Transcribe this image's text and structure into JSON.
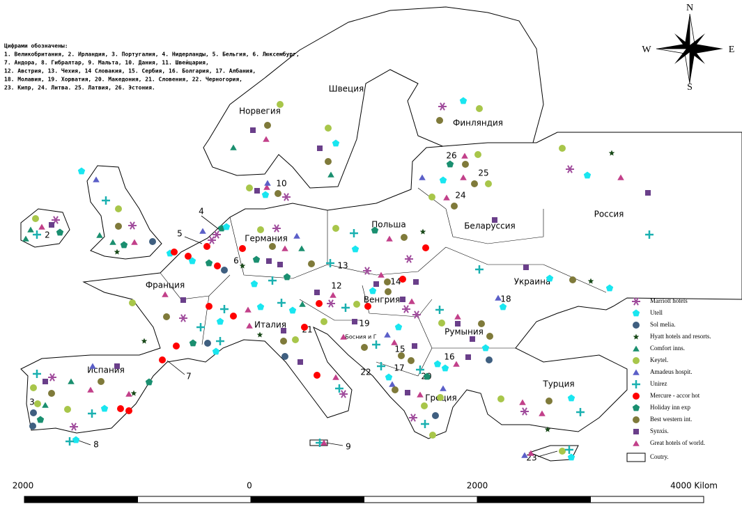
{
  "notes": {
    "title": "Цифрами обозначены:",
    "lines": [
      "1. Великобритания, 2. Ирландия, 3. Португалия, 4. Нидерланды, 5. Бельгия, 6. Люксембург,",
      "7. Андора, 8. Гибралтар, 9. Мальта, 10. Дания, 11. Швейцария,",
      "12. Австрия, 13. Чехия, 14 Словакия, 15. Сербия, 16. Болгария, 17. Албания,",
      "18. Молавия, 19. Хорватия, 20. Македония, 21. Словения, 22. Черногория,",
      "23. Кипр, 24. Литва. 25. Латвия, 26. Эстония."
    ]
  },
  "countries": [
    "Швеция",
    "Норвегия",
    "Финляндия",
    "Россия",
    "Беларуссия",
    "Польша",
    "Германия",
    "Украина",
    "Франция",
    "Венгрия",
    "Италия",
    "Румыния",
    "Босния и Г",
    "Испания",
    "Турция",
    "Греция"
  ],
  "numbers": [
    "2",
    "3",
    "4",
    "5",
    "6",
    "7",
    "8",
    "9",
    "10",
    "12",
    "13",
    "14",
    "15",
    "16",
    "17",
    "18",
    "19",
    "20",
    "21",
    "22",
    "23",
    "24",
    "25",
    "26"
  ],
  "legend": [
    "Marriott hotels",
    "Utell",
    "Sol melia.",
    "Hyatt hotels and resorts.",
    "Comfort inns.",
    "Keytel.",
    "Amadeus hospit.",
    "Unirez",
    "Mercure - accor hot",
    "Holiday inn exp",
    "Best western int.",
    "Synxis.",
    "Great hotels of world."
  ],
  "legend_country": "Coutry.",
  "scale": {
    "labels": [
      "2000",
      "0",
      "2000",
      "4000  Kilom"
    ]
  },
  "compass": {
    "n": "N",
    "w": "W",
    "e": "E",
    "s": "S"
  }
}
